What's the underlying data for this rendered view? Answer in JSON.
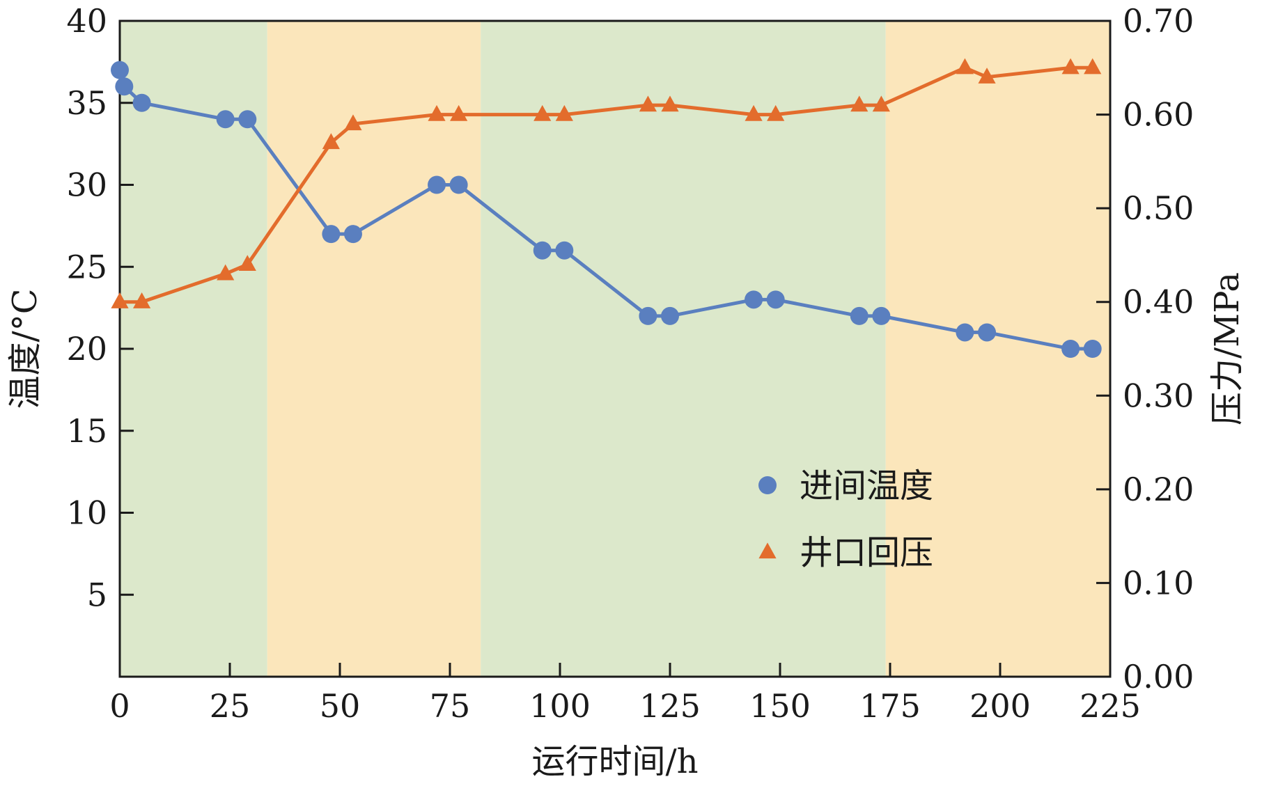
{
  "chart_data": {
    "type": "line",
    "xlabel": "运行时间/h",
    "ylabel_left": "温度/°C",
    "ylabel_right": "压力/MPa",
    "xlim": [
      0,
      225
    ],
    "ylim_left": [
      0,
      40
    ],
    "ylim_right": [
      0.0,
      0.7
    ],
    "x_ticks": [
      "0",
      "25",
      "50",
      "75",
      "100",
      "125",
      "150",
      "175",
      "200",
      "225"
    ],
    "y_left_ticks": [
      "5",
      "10",
      "15",
      "20",
      "25",
      "30",
      "35",
      "40"
    ],
    "y_right_ticks": [
      "0.00",
      "0.10",
      "0.20",
      "0.30",
      "0.40",
      "0.50",
      "0.60",
      "0.70"
    ],
    "grid": false,
    "legend_position": "center-right",
    "background_bands": [
      {
        "from": 0,
        "to": 33.5,
        "color": "#dce8cb"
      },
      {
        "from": 33.5,
        "to": 82,
        "color": "#fbe6bb"
      },
      {
        "from": 82,
        "to": 174,
        "color": "#dce8cb"
      },
      {
        "from": 174,
        "to": 225,
        "color": "#fbe6bb"
      }
    ],
    "series": [
      {
        "name": "进间温度",
        "axis": "left",
        "marker": "circle",
        "color": "#5a7fbf",
        "x": [
          0,
          1,
          5,
          24,
          29,
          48,
          53,
          72,
          77,
          96,
          101,
          120,
          125,
          144,
          149,
          168,
          173,
          192,
          197,
          216,
          221
        ],
        "y": [
          37,
          36,
          35,
          34,
          34,
          27,
          27,
          30,
          30,
          26,
          26,
          22,
          22,
          23,
          23,
          22,
          22,
          21,
          21,
          20,
          20
        ]
      },
      {
        "name": "井口回压",
        "axis": "right",
        "marker": "triangle",
        "color": "#e36c2c",
        "x": [
          0,
          5,
          24,
          29,
          48,
          53,
          72,
          77,
          96,
          101,
          120,
          125,
          144,
          149,
          168,
          173,
          192,
          197,
          216,
          221
        ],
        "y": [
          0.4,
          0.4,
          0.43,
          0.44,
          0.57,
          0.59,
          0.6,
          0.6,
          0.6,
          0.6,
          0.61,
          0.61,
          0.6,
          0.6,
          0.61,
          0.61,
          0.65,
          0.64,
          0.65,
          0.65
        ]
      }
    ]
  }
}
